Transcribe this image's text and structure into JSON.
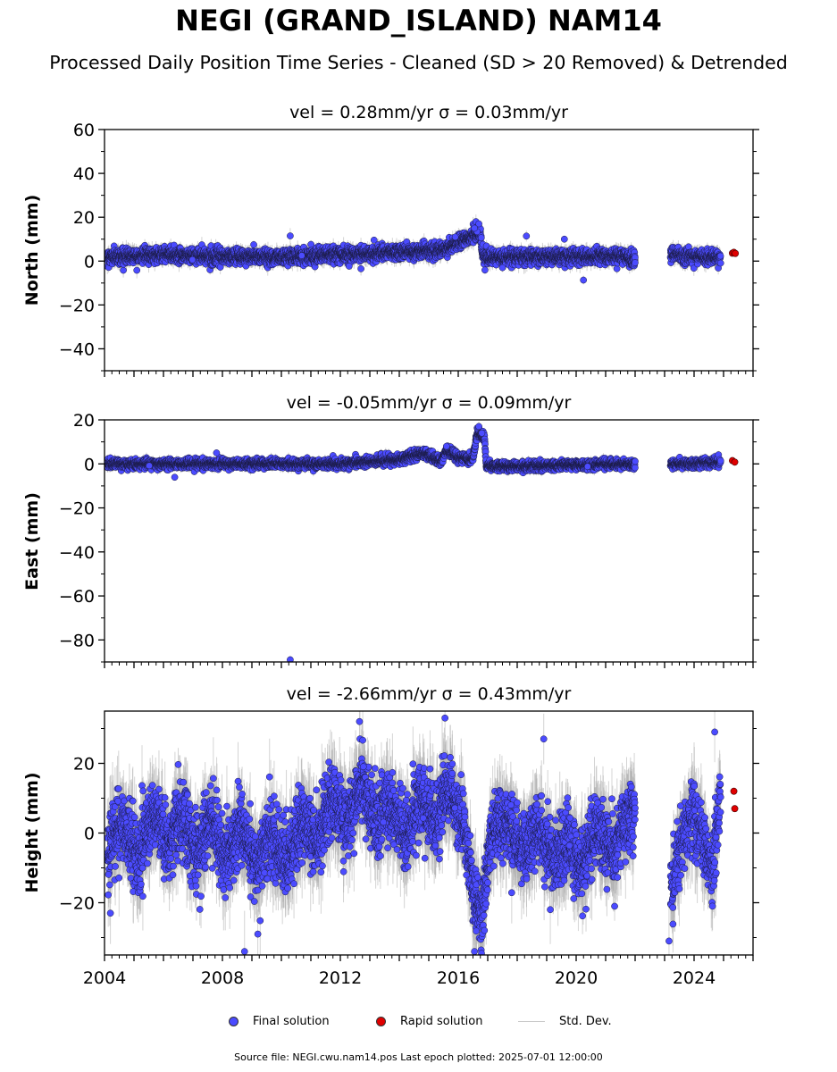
{
  "title": "NEGI (GRAND_ISLAND) NAM14",
  "subtitle": "Processed Daily Position Time Series - Cleaned (SD > 20 Removed) & Detrended",
  "legend": {
    "final_label": "Final solution",
    "rapid_label": "Rapid solution",
    "std_label": "Std. Dev."
  },
  "source_text": "Source file: NEGI.cwu.nam14.pos  Last epoch plotted: 2025-07-01 12:00:00",
  "colors": {
    "final": "#4b4bff",
    "rapid": "#e00000",
    "std": "#b0b0b0"
  },
  "chart_data": [
    {
      "type": "scatter",
      "component": "north",
      "title": "vel = 0.28mm/yr   σ = 0.03mm/yr",
      "ylabel": "North (mm)",
      "xlim": [
        2004.0,
        2026.0
      ],
      "ylim": [
        -50,
        60
      ],
      "yticks": [
        60,
        40,
        20,
        0,
        -20,
        -40
      ],
      "xticks": [],
      "noise_sd": 1.6,
      "sparse_outliers": 6,
      "series": [
        {
          "name": "Final solution",
          "trend": [
            [
              2004.1,
              2
            ],
            [
              2006,
              3
            ],
            [
              2008,
              2
            ],
            [
              2010,
              2
            ],
            [
              2012,
              3
            ],
            [
              2014,
              4
            ],
            [
              2015.5,
              5
            ],
            [
              2016.2,
              10
            ],
            [
              2016.75,
              13
            ],
            [
              2016.85,
              1
            ],
            [
              2018,
              2
            ],
            [
              2020,
              2
            ],
            [
              2021.5,
              2
            ],
            [
              2022.0,
              1
            ]
          ],
          "segments": [
            [
              2004.1,
              2022.0
            ],
            [
              2023.2,
              2024.9
            ]
          ],
          "extra_trend": [
            [
              2023.2,
              3
            ],
            [
              2024,
              2
            ],
            [
              2024.9,
              2
            ]
          ],
          "highlights": [
            [
              2010.3,
              11.5
            ],
            [
              2016.6,
              18
            ],
            [
              2016.7,
              17
            ],
            [
              2016.55,
              15
            ],
            [
              2015.9,
              11
            ],
            [
              2012.7,
              -3.5
            ],
            [
              2017.5,
              -3
            ],
            [
              2019.6,
              10
            ]
          ]
        },
        {
          "name": "Rapid solution",
          "points": [
            [
              2025.3,
              3.6
            ],
            [
              2025.35,
              4.0
            ],
            [
              2025.4,
              3.5
            ]
          ]
        }
      ]
    },
    {
      "type": "scatter",
      "component": "east",
      "title": "vel = -0.05mm/yr   σ = 0.09mm/yr",
      "ylabel": "East (mm)",
      "xlim": [
        2004.0,
        2026.0
      ],
      "ylim": [
        -90,
        20
      ],
      "yticks": [
        20,
        0,
        -20,
        -40,
        -60,
        -80
      ],
      "xticks": [],
      "noise_sd": 1.0,
      "sparse_outliers": 3,
      "series": [
        {
          "name": "Final solution",
          "trend": [
            [
              2004.1,
              0
            ],
            [
              2008,
              0
            ],
            [
              2012,
              0
            ],
            [
              2014,
              2
            ],
            [
              2014.8,
              5
            ],
            [
              2015.4,
              1
            ],
            [
              2015.6,
              6
            ],
            [
              2016.0,
              3
            ],
            [
              2016.5,
              2
            ],
            [
              2016.65,
              15
            ],
            [
              2016.9,
              11
            ],
            [
              2016.95,
              -1
            ],
            [
              2018,
              -1
            ],
            [
              2020,
              -0.5
            ],
            [
              2022.0,
              0
            ]
          ],
          "segments": [
            [
              2004.1,
              2022.0
            ],
            [
              2023.2,
              2024.9
            ]
          ],
          "extra_trend": [
            [
              2023.2,
              0
            ],
            [
              2024,
              0
            ],
            [
              2024.9,
              1
            ]
          ],
          "highlights": [
            [
              2010.3,
              -89
            ],
            [
              2016.7,
              17
            ],
            [
              2016.8,
              14
            ],
            [
              2007.8,
              5
            ],
            [
              2015.6,
              8
            ]
          ]
        },
        {
          "name": "Rapid solution",
          "points": [
            [
              2025.3,
              1.5
            ],
            [
              2025.38,
              0.8
            ]
          ]
        }
      ]
    },
    {
      "type": "scatter",
      "component": "height",
      "title": "vel = -2.66mm/yr   σ = 0.43mm/yr",
      "ylabel": "Height (mm)",
      "xlim": [
        2004.0,
        2026.0
      ],
      "ylim": [
        -35,
        35
      ],
      "yticks": [
        20,
        0,
        -20
      ],
      "xticks": [
        2004,
        2008,
        2012,
        2016,
        2020,
        2024
      ],
      "noise_sd": 5.0,
      "sparse_outliers": 10,
      "series": [
        {
          "name": "Final solution",
          "trend": [
            [
              2004.1,
              -5
            ],
            [
              2004.6,
              3
            ],
            [
              2005.1,
              -8
            ],
            [
              2005.6,
              5
            ],
            [
              2006.2,
              -4
            ],
            [
              2006.6,
              8
            ],
            [
              2007.1,
              -6
            ],
            [
              2007.6,
              4
            ],
            [
              2008.1,
              -8
            ],
            [
              2008.6,
              2
            ],
            [
              2009.2,
              -10
            ],
            [
              2009.6,
              0
            ],
            [
              2010.2,
              -8
            ],
            [
              2010.7,
              2
            ],
            [
              2011.2,
              -3
            ],
            [
              2011.7,
              10
            ],
            [
              2012.2,
              2
            ],
            [
              2012.7,
              14
            ],
            [
              2013.2,
              3
            ],
            [
              2013.7,
              8
            ],
            [
              2014.2,
              -2
            ],
            [
              2014.7,
              10
            ],
            [
              2015.2,
              2
            ],
            [
              2015.6,
              14
            ],
            [
              2016.2,
              2
            ],
            [
              2016.55,
              -18
            ],
            [
              2016.8,
              -25
            ],
            [
              2017.1,
              -2
            ],
            [
              2017.6,
              5
            ],
            [
              2018.2,
              -6
            ],
            [
              2018.7,
              2
            ],
            [
              2019.2,
              -8
            ],
            [
              2019.7,
              -2
            ],
            [
              2020.2,
              -10
            ],
            [
              2020.7,
              2
            ],
            [
              2021.2,
              -6
            ],
            [
              2021.7,
              4
            ],
            [
              2022.0,
              6
            ]
          ],
          "segments": [
            [
              2004.1,
              2022.0
            ],
            [
              2023.2,
              2024.9
            ]
          ],
          "extra_trend": [
            [
              2023.2,
              -18
            ],
            [
              2023.5,
              -6
            ],
            [
              2023.9,
              6
            ],
            [
              2024.3,
              -2
            ],
            [
              2024.6,
              -10
            ],
            [
              2024.9,
              12
            ]
          ],
          "highlights": [
            [
              2012.65,
              32
            ],
            [
              2015.55,
              33
            ],
            [
              2018.9,
              27
            ],
            [
              2024.7,
              29
            ],
            [
              2023.15,
              -31
            ],
            [
              2008.75,
              -34
            ],
            [
              2009.2,
              -29
            ],
            [
              2016.55,
              -34
            ],
            [
              2004.2,
              -23
            ]
          ]
        },
        {
          "name": "Rapid solution",
          "points": [
            [
              2025.35,
              12
            ],
            [
              2025.38,
              7
            ]
          ]
        }
      ]
    }
  ]
}
